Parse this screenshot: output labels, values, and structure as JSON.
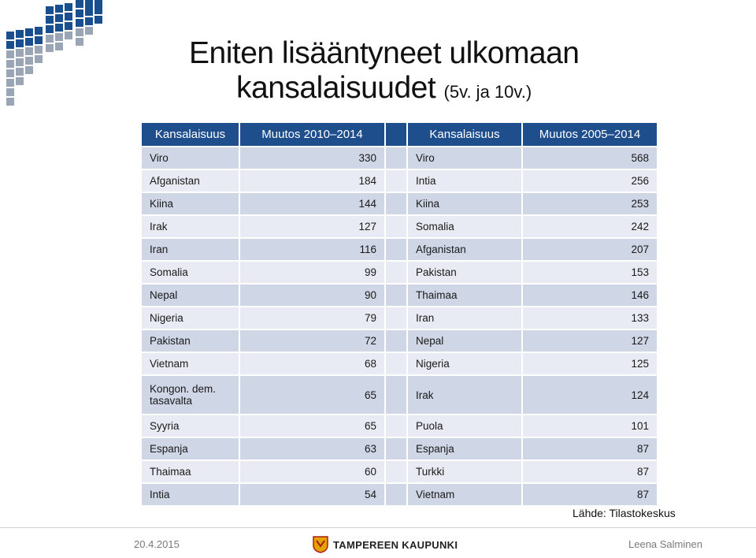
{
  "title": {
    "line1": "Eniten lisääntyneet ulkomaan",
    "line2": "kansalaisuudet",
    "suffix": "(5v. ja 10v.)"
  },
  "table": {
    "headers": [
      "Kansalaisuus",
      "Muutos 2010–2014",
      "",
      "Kansalaisuus",
      "Muutos 2005–2014"
    ],
    "rows": [
      {
        "a": "Viro",
        "av": "330",
        "b": "Viro",
        "bv": "568"
      },
      {
        "a": "Afganistan",
        "av": "184",
        "b": "Intia",
        "bv": "256"
      },
      {
        "a": "Kiina",
        "av": "144",
        "b": "Kiina",
        "bv": "253"
      },
      {
        "a": "Irak",
        "av": "127",
        "b": "Somalia",
        "bv": "242"
      },
      {
        "a": "Iran",
        "av": "116",
        "b": "Afganistan",
        "bv": "207"
      },
      {
        "a": "Somalia",
        "av": "99",
        "b": "Pakistan",
        "bv": "153"
      },
      {
        "a": "Nepal",
        "av": "90",
        "b": "Thaimaa",
        "bv": "146"
      },
      {
        "a": "Nigeria",
        "av": "79",
        "b": "Iran",
        "bv": "133"
      },
      {
        "a": "Pakistan",
        "av": "72",
        "b": "Nepal",
        "bv": "127"
      },
      {
        "a": "Vietnam",
        "av": "68",
        "b": "Nigeria",
        "bv": "125"
      },
      {
        "a": "Kongon. dem. tasavalta",
        "av": "65",
        "b": "Irak",
        "bv": "124"
      },
      {
        "a": "Syyria",
        "av": "65",
        "b": "Puola",
        "bv": "101"
      },
      {
        "a": "Espanja",
        "av": "63",
        "b": "Espanja",
        "bv": "87"
      },
      {
        "a": "Thaimaa",
        "av": "60",
        "b": "Turkki",
        "bv": "87"
      },
      {
        "a": "Intia",
        "av": "54",
        "b": "Vietnam",
        "bv": "87"
      }
    ]
  },
  "source": "Lähde: Tilastokeskus",
  "footer": {
    "date": "20.4.2015",
    "organization": "TAMPEREEN KAUPUNKI",
    "author": "Leena Salminen"
  },
  "colors": {
    "header": "#1f4e8c",
    "row_dark": "#cfd6e6",
    "row_light": "#e8ebf3",
    "logo_blue": "#1a4f8f"
  }
}
